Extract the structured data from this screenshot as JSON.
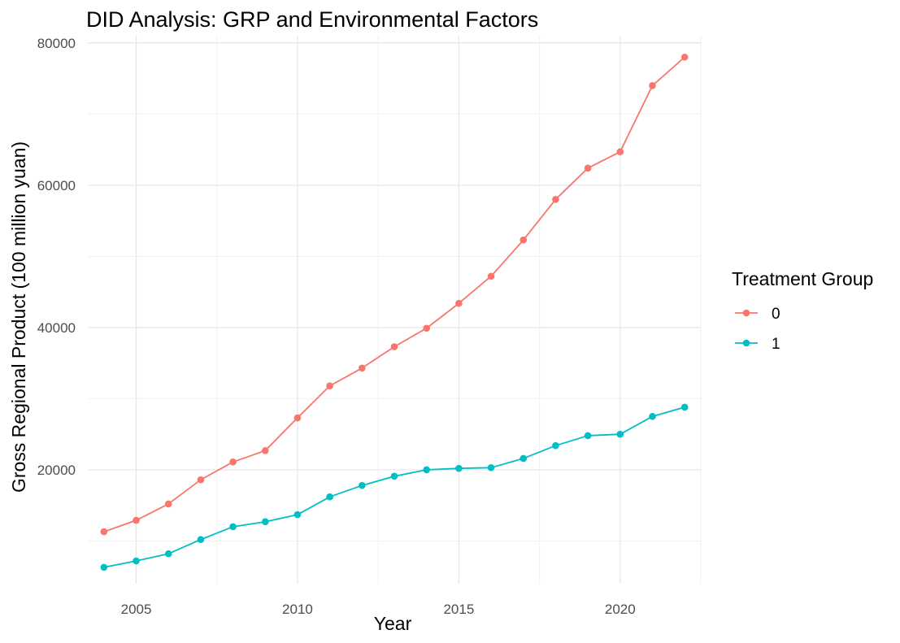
{
  "chart_data": {
    "type": "line",
    "title": "DID Analysis: GRP and Environmental Factors",
    "xlabel": "Year",
    "ylabel": "Gross Regional Product (100 million yuan)",
    "xlim": [
      2003.5,
      2022.5
    ],
    "ylim": [
      4000,
      81000
    ],
    "x_ticks": [
      2005,
      2010,
      2015,
      2020
    ],
    "y_ticks": [
      20000,
      40000,
      60000,
      80000
    ],
    "x_tick_labels": [
      "2005",
      "2010",
      "2015",
      "2020"
    ],
    "y_tick_labels": [
      "20000",
      "40000",
      "60000",
      "80000"
    ],
    "grid": true,
    "legend": {
      "title": "Treatment Group",
      "position": "right"
    },
    "x": [
      2004,
      2005,
      2006,
      2007,
      2008,
      2009,
      2010,
      2011,
      2012,
      2013,
      2014,
      2015,
      2016,
      2017,
      2018,
      2019,
      2020,
      2021,
      2022
    ],
    "series": [
      {
        "name": "0",
        "color": "#F8766D",
        "values": [
          11300,
          12900,
          15200,
          18600,
          21100,
          22700,
          27300,
          31800,
          34300,
          37300,
          39900,
          43400,
          47200,
          52300,
          58000,
          62400,
          64700,
          74000,
          78000
        ]
      },
      {
        "name": "1",
        "color": "#00BFC4",
        "values": [
          6300,
          7200,
          8200,
          10200,
          12000,
          12700,
          13700,
          16200,
          17800,
          19100,
          20000,
          20200,
          20300,
          21600,
          23400,
          24800,
          25000,
          27500,
          28800
        ]
      }
    ]
  }
}
